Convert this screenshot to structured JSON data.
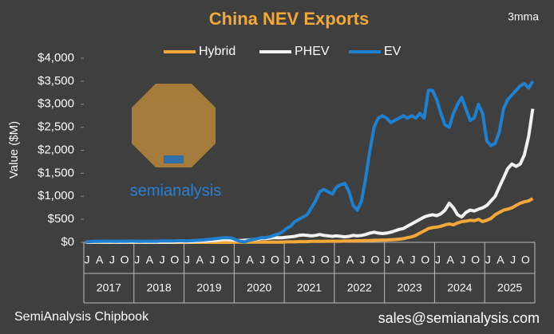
{
  "chart_data": {
    "type": "line",
    "title": "China NEV Exports",
    "subtitle": "3mma",
    "ylabel": "Value ($M)",
    "source": "SemiAnalysis Chipbook",
    "contact": "sales@semianalysis.com",
    "watermark": "semianalysis",
    "years": [
      "2017",
      "2018",
      "2019",
      "2020",
      "2021",
      "2022",
      "2023",
      "2024",
      "2025"
    ],
    "categories": [
      "J",
      null,
      null,
      "A",
      null,
      null,
      "J",
      null,
      null,
      "O",
      null,
      null,
      "J",
      null,
      null,
      "A",
      null,
      null,
      "J",
      null,
      null,
      "O",
      null,
      null,
      "J",
      null,
      null,
      "A",
      null,
      null,
      "J",
      null,
      null,
      "O",
      null,
      null,
      "J",
      null,
      null,
      "A",
      null,
      null,
      "J",
      null,
      null,
      "O",
      null,
      null,
      "J",
      null,
      null,
      "A",
      null,
      null,
      "J",
      null,
      null,
      "O",
      null,
      null,
      "J",
      null,
      null,
      "A",
      null,
      null,
      "J",
      null,
      null,
      "O",
      null,
      null,
      "J",
      null,
      null,
      "A",
      null,
      null,
      "J",
      null,
      null,
      "O",
      null,
      null,
      "J",
      null,
      null,
      "A",
      null,
      null,
      "J",
      null,
      null,
      "O",
      null,
      null,
      "J",
      null,
      null,
      "A",
      null,
      null,
      "J",
      null,
      null,
      "O",
      null,
      null
    ],
    "ylim": [
      0,
      4000
    ],
    "yticks": [
      {
        "value": 0,
        "label": "$0"
      },
      {
        "value": 500,
        "label": "$500"
      },
      {
        "value": 1000,
        "label": "$1,000"
      },
      {
        "value": 1500,
        "label": "$1,500"
      },
      {
        "value": 2000,
        "label": "$2,000"
      },
      {
        "value": 2500,
        "label": "$2,500"
      },
      {
        "value": 3000,
        "label": "$3,000"
      },
      {
        "value": 3500,
        "label": "$3,500"
      },
      {
        "value": 4000,
        "label": "$4,000"
      }
    ],
    "grid": false,
    "series": [
      {
        "name": "Hybrid",
        "color": "#f4a83a",
        "values": [
          0,
          0,
          0,
          0,
          0,
          0,
          0,
          0,
          0,
          0,
          0,
          0,
          0,
          0,
          0,
          0,
          0,
          0,
          0,
          0,
          0,
          0,
          0,
          0,
          0,
          0,
          0,
          0,
          0,
          0,
          0,
          0,
          0,
          0,
          0,
          0,
          5,
          5,
          5,
          5,
          5,
          5,
          5,
          5,
          5,
          5,
          5,
          5,
          10,
          10,
          10,
          15,
          15,
          15,
          20,
          20,
          20,
          20,
          25,
          25,
          25,
          25,
          30,
          30,
          30,
          35,
          35,
          40,
          40,
          45,
          45,
          50,
          50,
          55,
          60,
          70,
          80,
          100,
          120,
          150,
          200,
          250,
          300,
          320,
          330,
          350,
          380,
          400,
          380,
          420,
          450,
          460,
          480,
          470,
          500,
          450,
          480,
          520,
          600,
          650,
          700,
          720,
          750,
          800,
          850,
          880,
          900,
          950
        ]
      },
      {
        "name": "PHEV",
        "color": "#f2f2f2",
        "values": [
          5,
          5,
          5,
          5,
          5,
          5,
          5,
          5,
          5,
          5,
          5,
          5,
          5,
          5,
          5,
          5,
          5,
          5,
          5,
          5,
          5,
          5,
          10,
          10,
          10,
          10,
          15,
          20,
          25,
          30,
          35,
          40,
          50,
          60,
          60,
          50,
          40,
          40,
          45,
          50,
          60,
          70,
          80,
          80,
          90,
          100,
          100,
          100,
          110,
          120,
          130,
          150,
          160,
          150,
          140,
          150,
          170,
          150,
          140,
          130,
          140,
          130,
          120,
          130,
          150,
          140,
          150,
          170,
          200,
          220,
          200,
          190,
          200,
          220,
          250,
          280,
          300,
          350,
          400,
          450,
          500,
          550,
          580,
          600,
          580,
          620,
          700,
          850,
          750,
          600,
          550,
          650,
          700,
          680,
          720,
          750,
          800,
          900,
          1000,
          1200,
          1400,
          1600,
          1700,
          1650,
          1700,
          1900,
          2300,
          2900
        ]
      },
      {
        "name": "EV",
        "color": "#1f80d0",
        "values": [
          10,
          15,
          20,
          20,
          25,
          25,
          25,
          20,
          25,
          25,
          25,
          30,
          25,
          20,
          25,
          25,
          25,
          25,
          30,
          30,
          30,
          30,
          35,
          35,
          30,
          35,
          40,
          45,
          50,
          60,
          70,
          80,
          90,
          100,
          100,
          90,
          50,
          20,
          10,
          40,
          60,
          80,
          100,
          100,
          120,
          150,
          180,
          220,
          300,
          350,
          450,
          500,
          550,
          600,
          750,
          900,
          1100,
          1150,
          1100,
          1050,
          1200,
          1250,
          1280,
          1100,
          800,
          700,
          900,
          1400,
          2000,
          2500,
          2700,
          2750,
          2700,
          2600,
          2650,
          2700,
          2750,
          2700,
          2750,
          2700,
          2800,
          2700,
          3300,
          3300,
          3100,
          2800,
          2550,
          2500,
          2800,
          3000,
          3150,
          2900,
          2650,
          2700,
          3000,
          2800,
          2200,
          2100,
          2150,
          2400,
          2900,
          3100,
          3200,
          3300,
          3400,
          3450,
          3350,
          3500
        ]
      }
    ]
  }
}
